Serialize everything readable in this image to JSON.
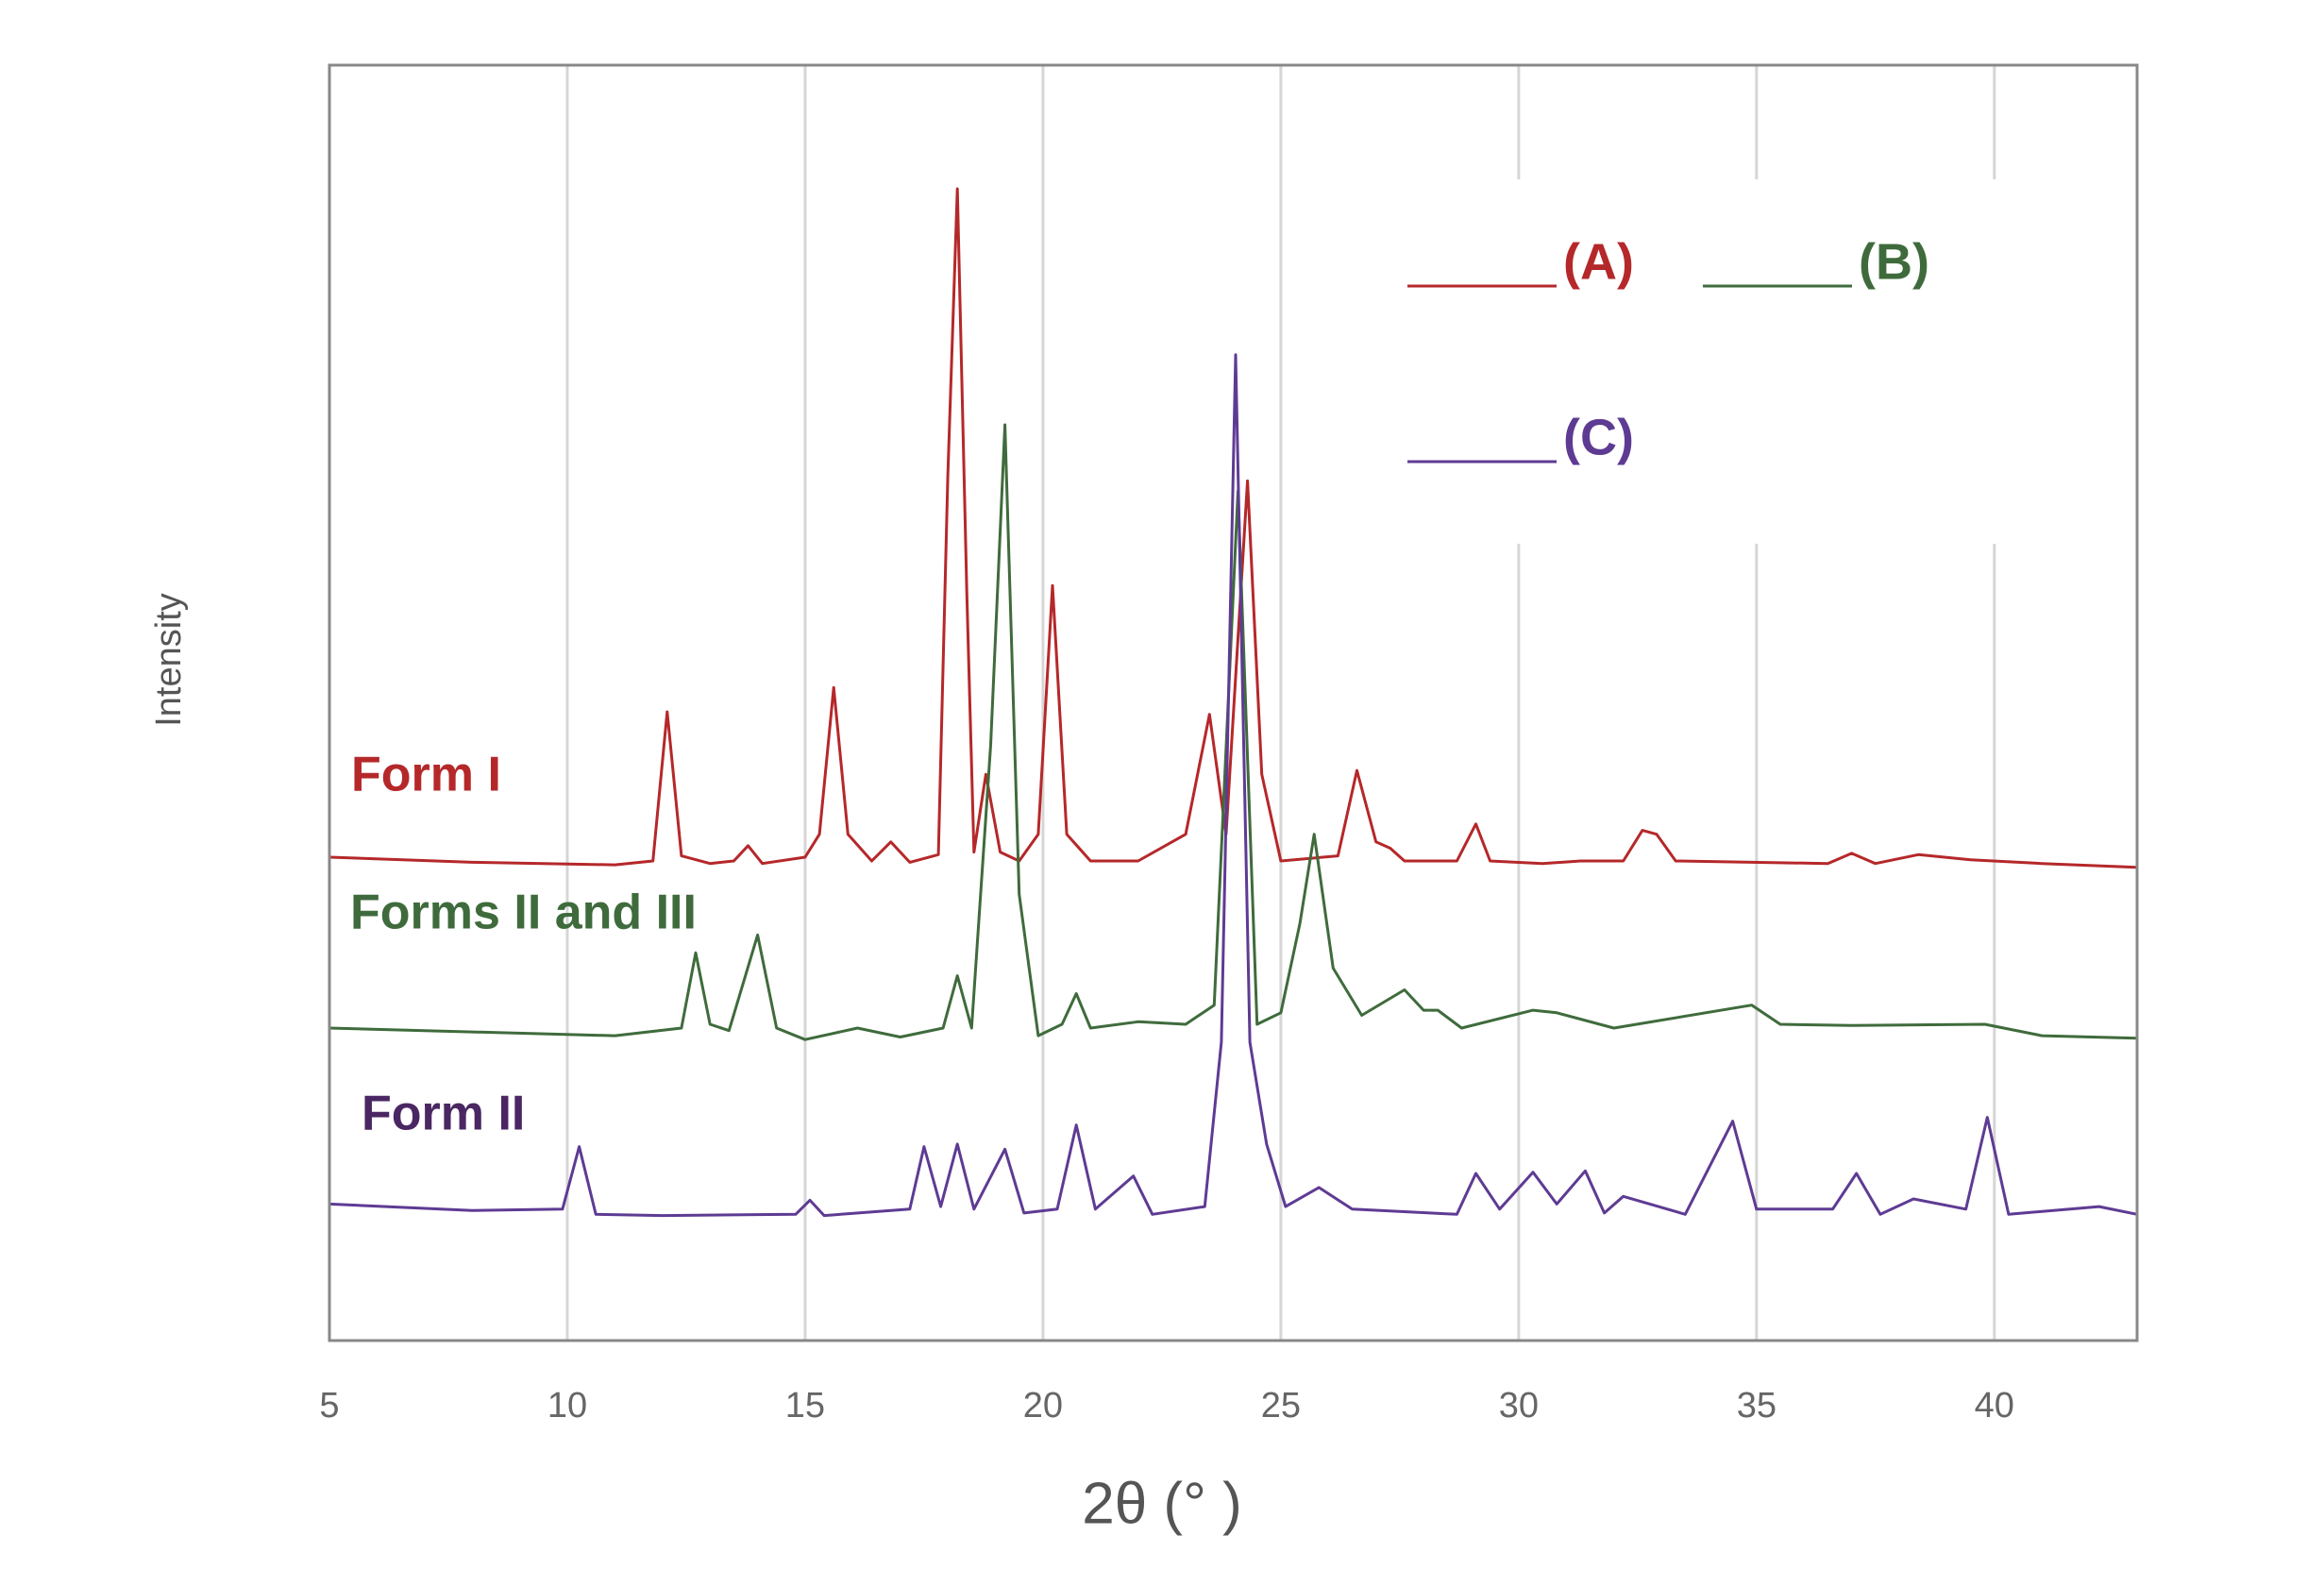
{
  "chart_data": {
    "type": "line",
    "xlabel": "2θ (° )",
    "ylabel": "Intensity",
    "xlim": [
      5,
      43
    ],
    "xticks": [
      5,
      10,
      15,
      20,
      25,
      30,
      35,
      40
    ],
    "ylim": [
      0,
      100
    ],
    "grid": true,
    "legend": "upper right",
    "series": [
      {
        "name": "(A)",
        "color": "#b5282a",
        "x": [
          5,
          8,
          11,
          11.8,
          12.1,
          12.4,
          13,
          13.5,
          13.8,
          14.1,
          15.0,
          15.3,
          15.6,
          15.9,
          16.4,
          16.8,
          17.2,
          17.8,
          18.0,
          18.2,
          18.4,
          18.55,
          18.8,
          19.1,
          19.5,
          19.9,
          20.2,
          20.5,
          21,
          22,
          23.0,
          23.5,
          23.85,
          24.3,
          24.6,
          25,
          26.2,
          26.6,
          27.0,
          27.3,
          27.6,
          28.7,
          29.1,
          29.4,
          30.5,
          31.3,
          32.2,
          32.6,
          32.9,
          33.3,
          36.5,
          37,
          37.5,
          38.4,
          39.5,
          41,
          43
        ],
        "values": [
          37.9,
          37.5,
          37.3,
          37.6,
          49.3,
          38.0,
          37.4,
          37.6,
          38.8,
          37.4,
          37.9,
          39.7,
          51.2,
          39.7,
          37.6,
          39.1,
          37.5,
          38.1,
          67.8,
          90.3,
          58.4,
          38.3,
          44.4,
          38.3,
          37.6,
          39.7,
          59.2,
          39.7,
          37.6,
          37.6,
          39.7,
          49.1,
          39.7,
          67.4,
          44.4,
          37.6,
          38.0,
          44.7,
          39.1,
          38.6,
          37.6,
          37.6,
          40.5,
          37.6,
          37.4,
          37.6,
          37.6,
          40.0,
          39.7,
          37.6,
          37.4,
          38.2,
          37.4,
          38.1,
          37.7,
          37.4,
          37.1
        ]
      },
      {
        "name": "(B)",
        "color": "#3f6b3c",
        "x": [
          5,
          8,
          11,
          12.4,
          12.7,
          13.0,
          13.4,
          14.0,
          14.4,
          15,
          16.1,
          17,
          17.9,
          18.2,
          18.5,
          18.9,
          19.2,
          19.5,
          19.9,
          20.4,
          20.7,
          21,
          22,
          23,
          23.6,
          24.1,
          24.5,
          25.0,
          25.4,
          25.7,
          26.1,
          26.7,
          27.6,
          28.0,
          28.3,
          28.8,
          30.3,
          30.8,
          32,
          34.9,
          35.5,
          37,
          39.8,
          41,
          43
        ],
        "values": [
          24.5,
          24.2,
          23.9,
          24.5,
          30.4,
          24.8,
          24.3,
          31.8,
          24.5,
          23.6,
          24.5,
          23.8,
          24.5,
          28.6,
          24.5,
          46.7,
          71.8,
          35.0,
          23.9,
          24.8,
          27.2,
          24.5,
          25.0,
          24.8,
          26.3,
          66.6,
          24.8,
          25.7,
          32.7,
          39.7,
          29.2,
          25.5,
          27.5,
          25.9,
          25.9,
          24.5,
          25.9,
          25.7,
          24.5,
          26.3,
          24.8,
          24.7,
          24.8,
          23.9,
          23.7
        ]
      },
      {
        "name": "(C)",
        "color": "#5e3b93",
        "x": [
          5,
          8,
          9.9,
          10.25,
          10.6,
          12,
          14.8,
          15.1,
          15.4,
          17.2,
          17.5,
          17.85,
          18.2,
          18.55,
          19.2,
          19.6,
          20.3,
          20.7,
          21.1,
          21.9,
          22.3,
          23.4,
          23.75,
          24.05,
          24.35,
          24.7,
          25.1,
          25.8,
          26.5,
          28.7,
          29.1,
          29.6,
          30.3,
          30.8,
          31.4,
          31.8,
          32.2,
          33.5,
          34.5,
          35,
          36.6,
          37.1,
          37.6,
          38.3,
          39.4,
          39.85,
          40.3,
          42.2,
          43
        ],
        "values": [
          10.7,
          10.2,
          10.3,
          15.2,
          9.9,
          9.8,
          9.9,
          11.0,
          9.8,
          10.3,
          15.2,
          10.5,
          15.4,
          10.3,
          15.0,
          10.0,
          10.3,
          16.9,
          10.3,
          12.9,
          9.9,
          10.5,
          23.4,
          77.3,
          23.4,
          15.4,
          10.5,
          12.0,
          10.3,
          9.9,
          13.1,
          10.3,
          13.2,
          10.7,
          13.3,
          10.0,
          11.3,
          9.9,
          17.2,
          10.3,
          10.3,
          13.1,
          9.9,
          11.1,
          10.3,
          17.5,
          9.9,
          10.5,
          9.9
        ]
      }
    ],
    "annotations": [
      {
        "text": "Form I",
        "color": "#b5282a"
      },
      {
        "text": "Forms II and III",
        "color": "#3f6b3c"
      },
      {
        "text": "Form II",
        "color": "#4a2762"
      }
    ]
  }
}
